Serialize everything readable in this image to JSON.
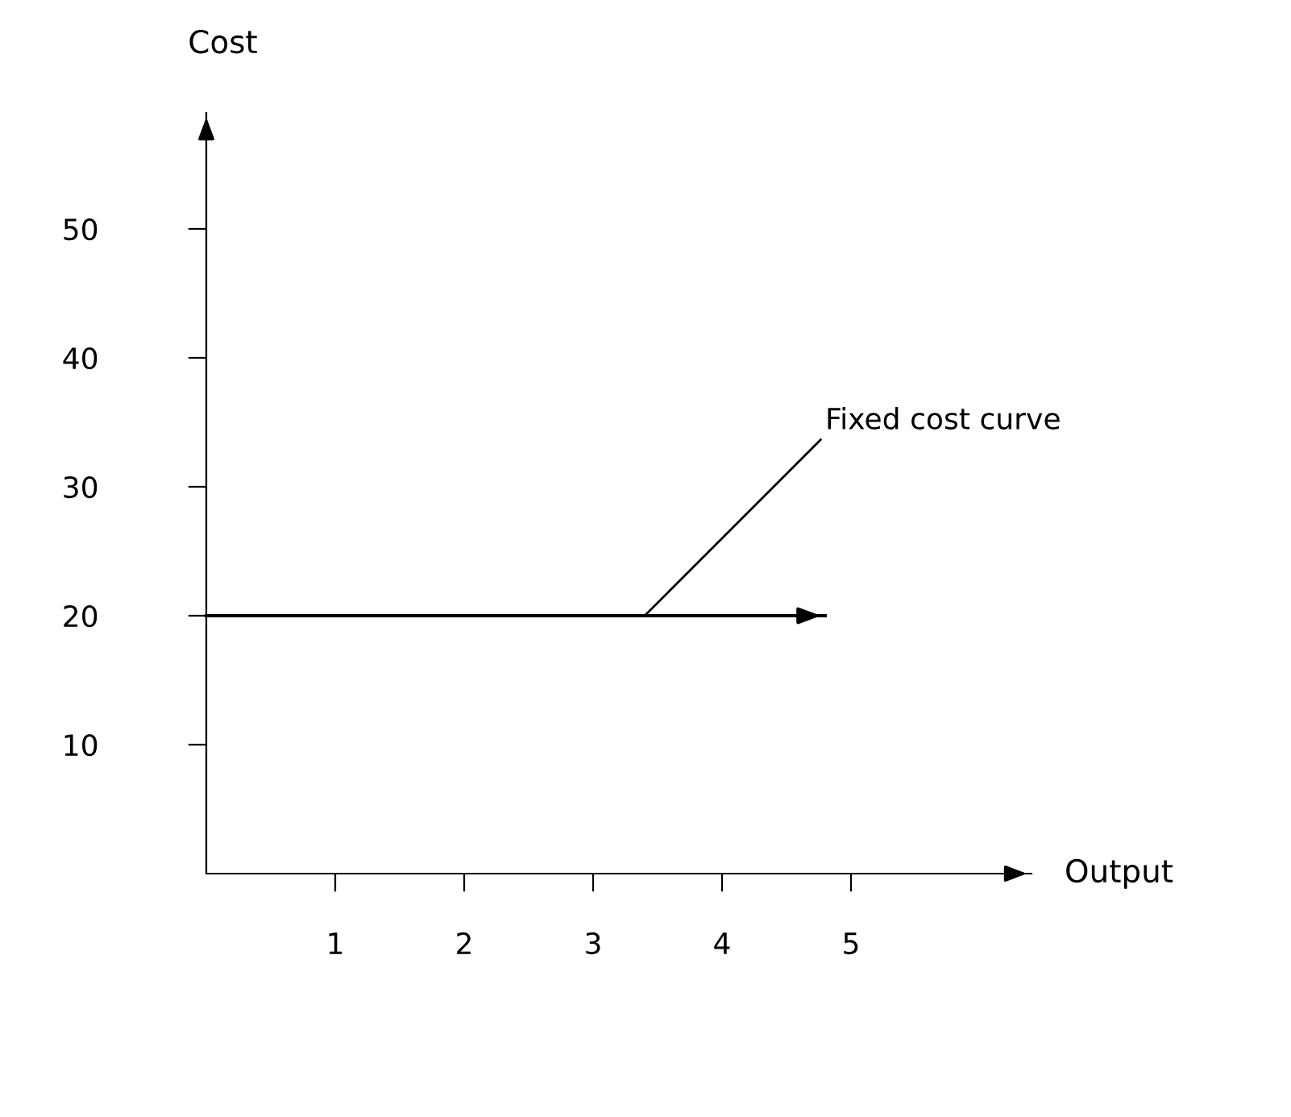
{
  "chart_data": {
    "type": "line",
    "xlabel": "Output",
    "ylabel": "Cost",
    "x": [
      0,
      4.8
    ],
    "series": [
      {
        "color": "#000000",
        "values": [
          20,
          20
        ]
      }
    ],
    "annotations": [
      {
        "text": "Fixed cost curve",
        "x": 3.4,
        "y": 20
      }
    ],
    "xlim": [
      0,
      6.4
    ],
    "ylim": [
      0,
      59
    ],
    "xticks": [
      1,
      2,
      3,
      4,
      5
    ],
    "yticks": [
      10,
      20,
      30,
      40,
      50
    ],
    "grid": false,
    "legend": false,
    "marker": "none",
    "line_style": "solid"
  }
}
